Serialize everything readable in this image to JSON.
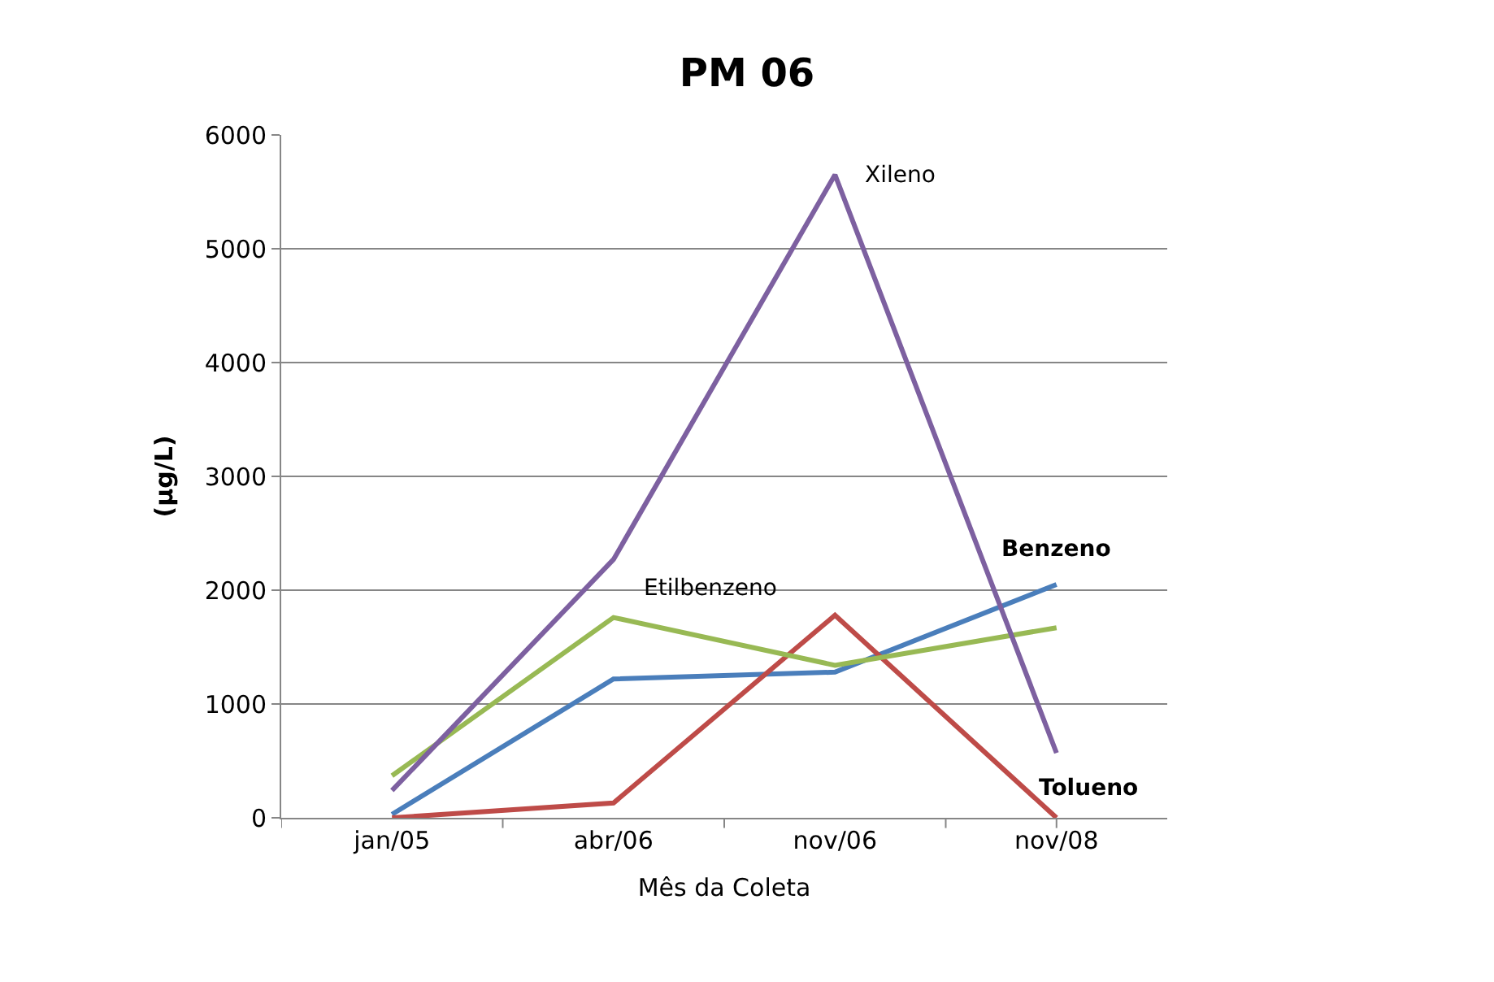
{
  "chart_data": {
    "type": "line",
    "title": "PM 06",
    "xlabel": "Mês da Coleta",
    "ylabel": "(µg/L)",
    "categories": [
      "jan/05",
      "abr/06",
      "nov/06",
      "nov/08"
    ],
    "series": [
      {
        "name": "Benzeno",
        "color": "#4a7ebb",
        "values": [
          30,
          1220,
          1280,
          2050
        ]
      },
      {
        "name": "Tolueno",
        "color": "#be4b48",
        "values": [
          0,
          130,
          1780,
          0
        ]
      },
      {
        "name": "Etilbenzeno",
        "color": "#98b954",
        "values": [
          370,
          1760,
          1340,
          1670
        ]
      },
      {
        "name": "Xileno",
        "color": "#7d60a0",
        "values": [
          240,
          2270,
          5650,
          570
        ]
      }
    ],
    "ylim": [
      0,
      6000
    ],
    "yticks": [
      0,
      1000,
      2000,
      3000,
      4000,
      5000,
      6000
    ],
    "grid": "y",
    "legend": false,
    "marker": "none",
    "line_style": "solid"
  }
}
